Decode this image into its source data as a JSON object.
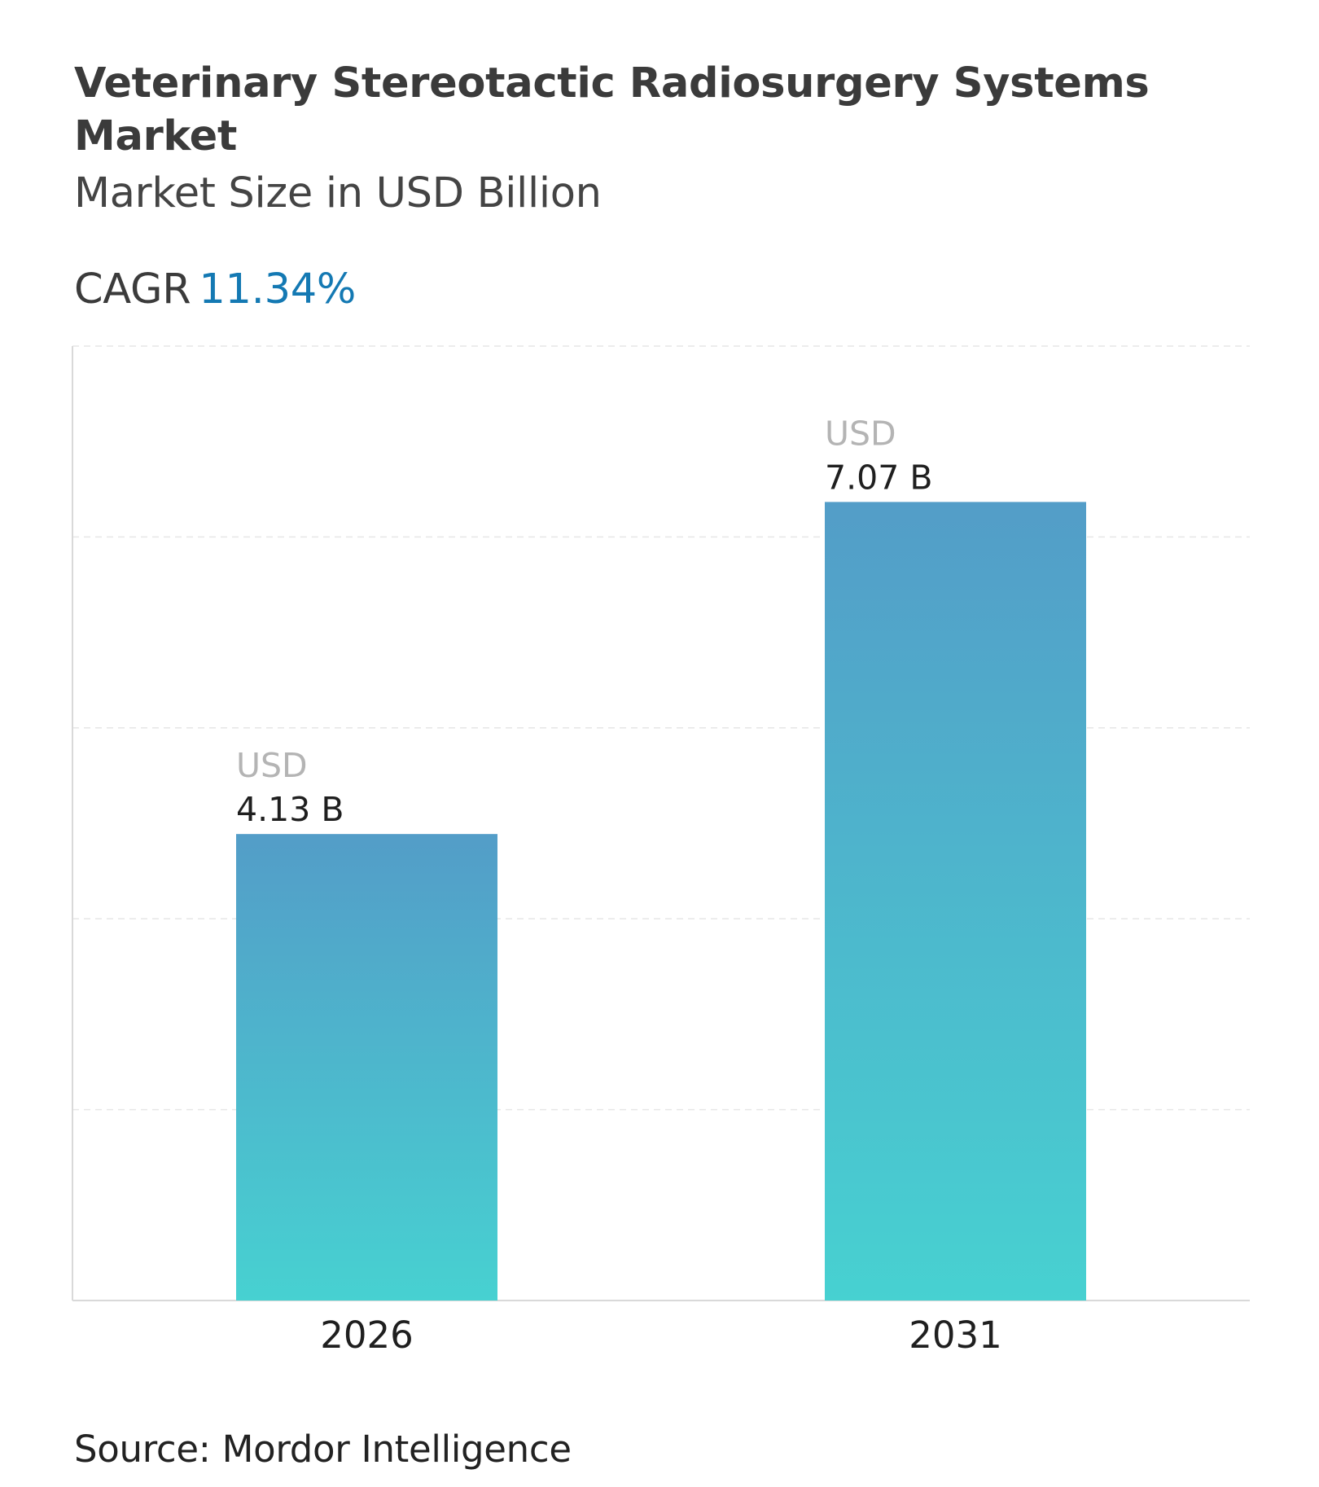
{
  "header": {
    "title": "Veterinary Stereotactic Radiosurgery Systems Market",
    "subtitle": "Market Size in USD Billion",
    "cagr_label": "CAGR",
    "cagr_value": "11.34%"
  },
  "footer": {
    "source": "Source: Mordor Intelligence"
  },
  "colors": {
    "bar_top": "#539dc8",
    "bar_bottom": "#47d1d1",
    "cagr_accent": "#1479b3",
    "gridline": "#e6e6e6",
    "axis": "#d9d9d9"
  },
  "chart_data": {
    "type": "bar",
    "title": "Veterinary Stereotactic Radiosurgery Systems Market",
    "subtitle": "Market Size in USD Billion",
    "categories": [
      "2026",
      "2031"
    ],
    "values": [
      4.13,
      7.07
    ],
    "value_labels": [
      {
        "unit": "USD",
        "value": "4.13 B"
      },
      {
        "unit": "USD",
        "value": "7.07 B"
      }
    ],
    "xlabel": "",
    "ylabel": "",
    "ylim": [
      0,
      8.45
    ],
    "grid": true,
    "legend": "none"
  }
}
